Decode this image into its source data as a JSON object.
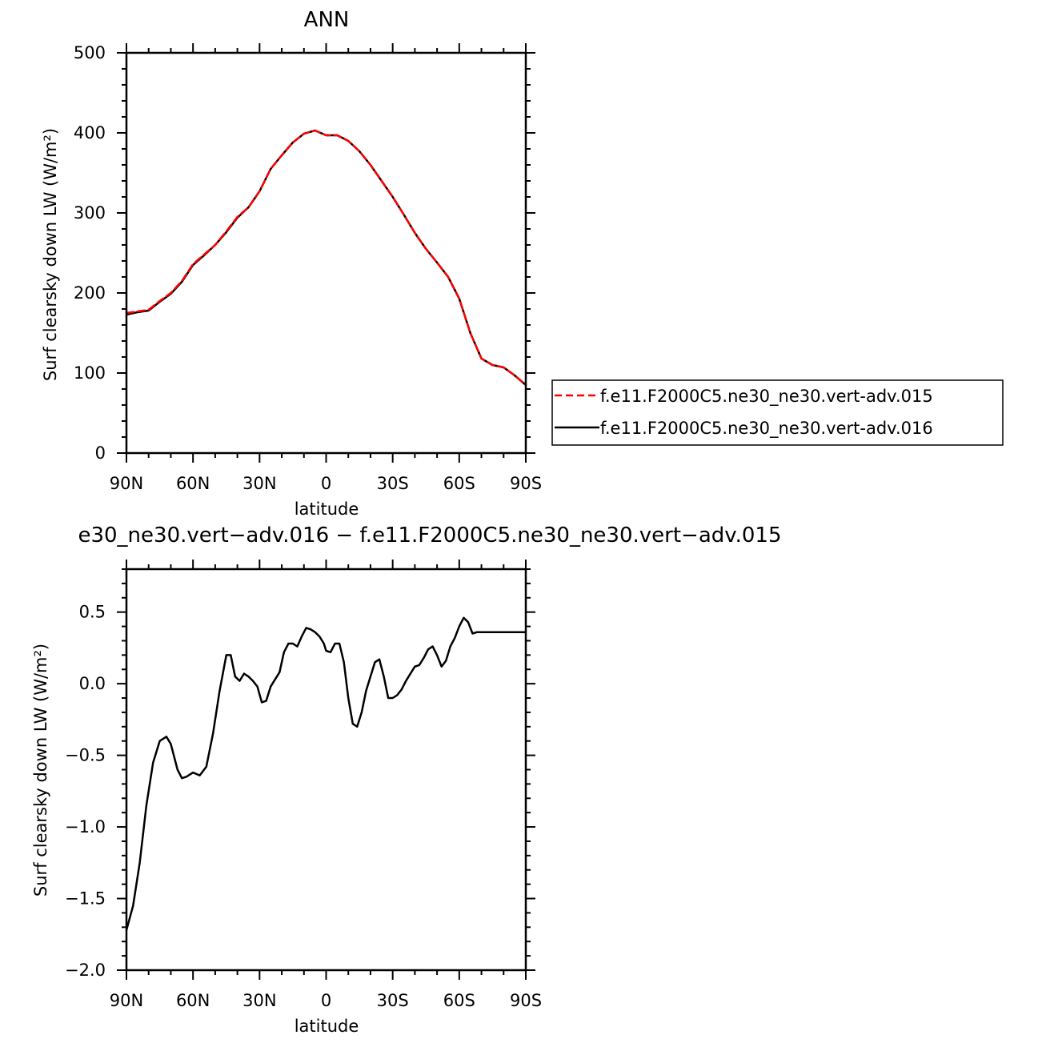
{
  "colors": {
    "ctrl_series": "#ff0000",
    "test_series": "#000000",
    "diff_series": "#000000",
    "axes": "#000000"
  },
  "chart_data": [
    {
      "type": "line",
      "title": "ANN",
      "xlabel": "latitude",
      "ylabel": "Surf clearsky down LW (W/m²)",
      "xlim": [
        90,
        -90
      ],
      "ylim": [
        0,
        500
      ],
      "xticks": [
        90,
        60,
        30,
        0,
        -30,
        -60,
        -90
      ],
      "xtick_labels": [
        "90N",
        "60N",
        "30N",
        "0",
        "30S",
        "60S",
        "90S"
      ],
      "yticks": [
        0,
        100,
        200,
        300,
        400,
        500
      ],
      "ytick_labels": [
        "0",
        "100",
        "200",
        "300",
        "400",
        "500"
      ],
      "grid": false,
      "legend_placement": "right",
      "series": [
        {
          "name": "f.e11.F2000C5.ne30_ne30.vert-adv.015",
          "style": "dashed",
          "color": "#ff0000",
          "x": [
            90,
            85,
            80,
            75,
            70,
            65,
            60,
            55,
            50,
            45,
            40,
            35,
            30,
            25,
            20,
            15,
            10,
            5,
            0,
            -5,
            -10,
            -15,
            -20,
            -25,
            -30,
            -35,
            -40,
            -45,
            -50,
            -55,
            -60,
            -65,
            -70,
            -75,
            -80,
            -85,
            -90
          ],
          "y": [
            175,
            177,
            179,
            190,
            200,
            215,
            236,
            248,
            260,
            277,
            295,
            307,
            327,
            355,
            372,
            388,
            399,
            403,
            397,
            397,
            390,
            377,
            360,
            340,
            320,
            298,
            275,
            255,
            238,
            220,
            193,
            150,
            118,
            110,
            107,
            97,
            85
          ]
        },
        {
          "name": "f.e11.F2000C5.ne30_ne30.vert-adv.016",
          "style": "solid",
          "color": "#000000",
          "x": [
            90,
            85,
            80,
            75,
            70,
            65,
            60,
            55,
            50,
            45,
            40,
            35,
            30,
            25,
            20,
            15,
            10,
            5,
            0,
            -5,
            -10,
            -15,
            -20,
            -25,
            -30,
            -35,
            -40,
            -45,
            -50,
            -55,
            -60,
            -65,
            -70,
            -75,
            -80,
            -85,
            -90
          ],
          "y": [
            173,
            176,
            178,
            189,
            199,
            214,
            235,
            247,
            260,
            276,
            294,
            307,
            327,
            355,
            372,
            388,
            399,
            403,
            397,
            397,
            390,
            377,
            360,
            340,
            320,
            298,
            275,
            255,
            238,
            220,
            193,
            150,
            118,
            110,
            107,
            97,
            85
          ]
        }
      ]
    },
    {
      "type": "line",
      "title": "e30_ne30.vert−adv.016 − f.e11.F2000C5.ne30_ne30.vert−adv.015",
      "xlabel": "latitude",
      "ylabel": "Surf clearsky down LW (W/m²)",
      "xlim": [
        90,
        -90
      ],
      "ylim": [
        -2.0,
        0.8
      ],
      "xticks": [
        90,
        60,
        30,
        0,
        -30,
        -60,
        -90
      ],
      "xtick_labels": [
        "90N",
        "60N",
        "30N",
        "0",
        "30S",
        "60S",
        "90S"
      ],
      "yticks": [
        -2.0,
        -1.5,
        -1.0,
        -0.5,
        0.0,
        0.5
      ],
      "ytick_labels": [
        "−2.0",
        "−1.5",
        "−1.0",
        "−0.5",
        "0.0",
        "0.5"
      ],
      "grid": false,
      "series": [
        {
          "style": "solid",
          "color": "#000000",
          "x": [
            90,
            87,
            84,
            81,
            78,
            75,
            72,
            70,
            67,
            65,
            63,
            60,
            57,
            54,
            51,
            48,
            45,
            43,
            41,
            39,
            37,
            35,
            33,
            31,
            29,
            27,
            25,
            23,
            21,
            19,
            17,
            15,
            13,
            11,
            9,
            7,
            5,
            3,
            1,
            0,
            -2,
            -4,
            -6,
            -8,
            -10,
            -12,
            -14,
            -16,
            -18,
            -20,
            -22,
            -24,
            -26,
            -28,
            -30,
            -32,
            -34,
            -36,
            -38,
            -40,
            -42,
            -44,
            -46,
            -48,
            -50,
            -52,
            -54,
            -56,
            -58,
            -60,
            -62,
            -64,
            -66,
            -68,
            -70,
            -72,
            -74,
            -76,
            -78,
            -80,
            -82,
            -84,
            -86,
            -88,
            -90
          ],
          "y": [
            -1.72,
            -1.55,
            -1.25,
            -0.85,
            -0.55,
            -0.4,
            -0.37,
            -0.42,
            -0.6,
            -0.66,
            -0.65,
            -0.62,
            -0.64,
            -0.58,
            -0.35,
            -0.05,
            0.2,
            0.2,
            0.05,
            0.02,
            0.07,
            0.05,
            0.02,
            -0.02,
            -0.13,
            -0.12,
            -0.02,
            0.03,
            0.08,
            0.22,
            0.28,
            0.28,
            0.26,
            0.33,
            0.39,
            0.38,
            0.36,
            0.33,
            0.28,
            0.23,
            0.22,
            0.28,
            0.28,
            0.15,
            -0.1,
            -0.28,
            -0.3,
            -0.2,
            -0.05,
            0.05,
            0.15,
            0.17,
            0.05,
            -0.1,
            -0.1,
            -0.08,
            -0.04,
            0.02,
            0.07,
            0.12,
            0.13,
            0.18,
            0.24,
            0.26,
            0.2,
            0.12,
            0.16,
            0.26,
            0.32,
            0.4,
            0.46,
            0.43,
            0.35,
            0.36,
            0.36,
            0.36,
            0.36,
            0.36,
            0.36,
            0.36,
            0.36,
            0.36,
            0.36,
            0.36,
            0.36
          ]
        }
      ]
    }
  ]
}
